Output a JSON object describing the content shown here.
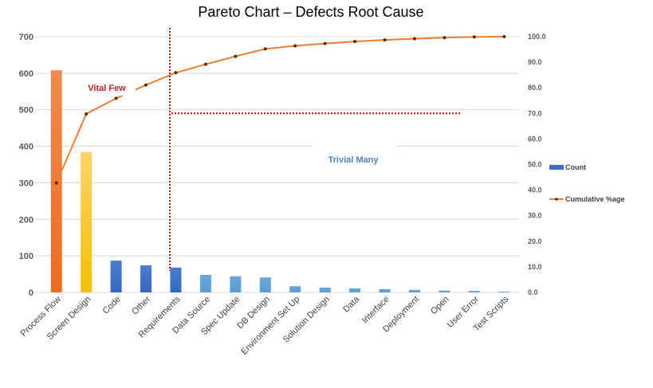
{
  "chart_data": {
    "type": "bar",
    "title": "Pareto Chart – Defects Root Cause",
    "categories": [
      "Process Flow",
      "Screen Design",
      "Code",
      "Other",
      "Requirements",
      "Data Source",
      "Spec Update",
      "DB Design",
      "Environment Set Up",
      "Solution Design",
      "Data",
      "Interface",
      "Deployment",
      "Open",
      "User Error",
      "Test Scripts"
    ],
    "series": [
      {
        "name": "Count",
        "type": "bar",
        "axis": "left",
        "values": [
          608,
          384,
          87,
          74,
          68,
          48,
          44,
          41,
          17,
          13,
          11,
          9,
          7,
          5,
          4,
          2
        ]
      },
      {
        "name": "Cumulative %age",
        "type": "line",
        "axis": "right",
        "values": [
          42.8,
          69.8,
          75.9,
          81.1,
          85.9,
          89.2,
          92.3,
          95.2,
          96.4,
          97.3,
          98.1,
          98.7,
          99.2,
          99.6,
          99.9,
          100.0
        ]
      }
    ],
    "y_left": {
      "range": [
        0,
        700
      ],
      "ticks": [
        "0",
        "100",
        "200",
        "300",
        "400",
        "500",
        "600",
        "700"
      ]
    },
    "y_right": {
      "range": [
        0,
        100
      ],
      "ticks": [
        "0.0",
        "10.0",
        "20.0",
        "30.0",
        "40.0",
        "50.0",
        "60.0",
        "70.0",
        "80.0",
        "90.0",
        "100.0"
      ]
    },
    "grid": true,
    "legend": "right",
    "annotations": {
      "vital_few": "Vital Few",
      "trivial_many": "Trivial Many",
      "threshold_pct": 70
    },
    "colors": {
      "line": "#ed7d31",
      "marker": "#5a2a10",
      "bar_first": "#ed6c1f",
      "bar_second": "#f5c000",
      "bar_dark": "#3566c0",
      "bar_light": "#5b9bd5",
      "divider": "#c00000",
      "vital_text": "#c0202a",
      "trivial_text": "#4f81bd"
    }
  }
}
